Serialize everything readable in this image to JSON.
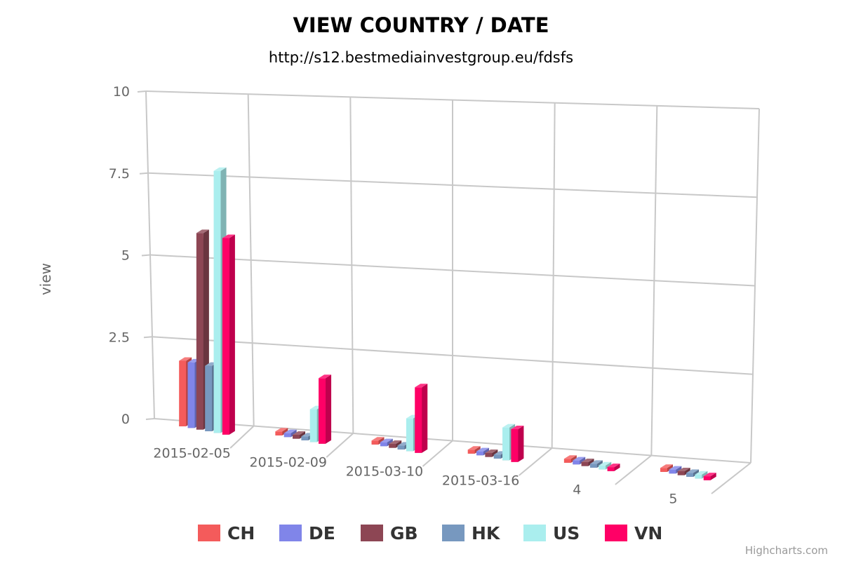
{
  "chart_data": {
    "type": "bar",
    "title": "VIEW COUNTRY / DATE",
    "subtitle": "http://s12.bestmediainvestgroup.eu/fdsfs",
    "ylabel": "view",
    "xlabel": "",
    "ylim": [
      0,
      10
    ],
    "y_ticks": [
      "0",
      "2.5",
      "5",
      "7.5",
      "10"
    ],
    "categories": [
      "2015-02-05",
      "2015-02-09",
      "2015-03-10",
      "2015-03-16",
      "4",
      "5"
    ],
    "series": [
      {
        "name": "CH",
        "color": "#f45b5b",
        "values": [
          2,
          0,
          0,
          0,
          0,
          0
        ]
      },
      {
        "name": "DE",
        "color": "#8085e9",
        "values": [
          2,
          0,
          0,
          0,
          0,
          0
        ]
      },
      {
        "name": "GB",
        "color": "#8d4654",
        "values": [
          6,
          0,
          0,
          0,
          0,
          0
        ]
      },
      {
        "name": "HK",
        "color": "#7798bf",
        "values": [
          2,
          0,
          0,
          0,
          0,
          0
        ]
      },
      {
        "name": "US",
        "color": "#aaeeee",
        "values": [
          8,
          1,
          1,
          1,
          0,
          0
        ]
      },
      {
        "name": "VN",
        "color": "#ff0066",
        "values": [
          6,
          2,
          2,
          1,
          0,
          0
        ]
      }
    ],
    "grid": true,
    "legend": "bottom-center",
    "credits": "Highcharts.com"
  }
}
